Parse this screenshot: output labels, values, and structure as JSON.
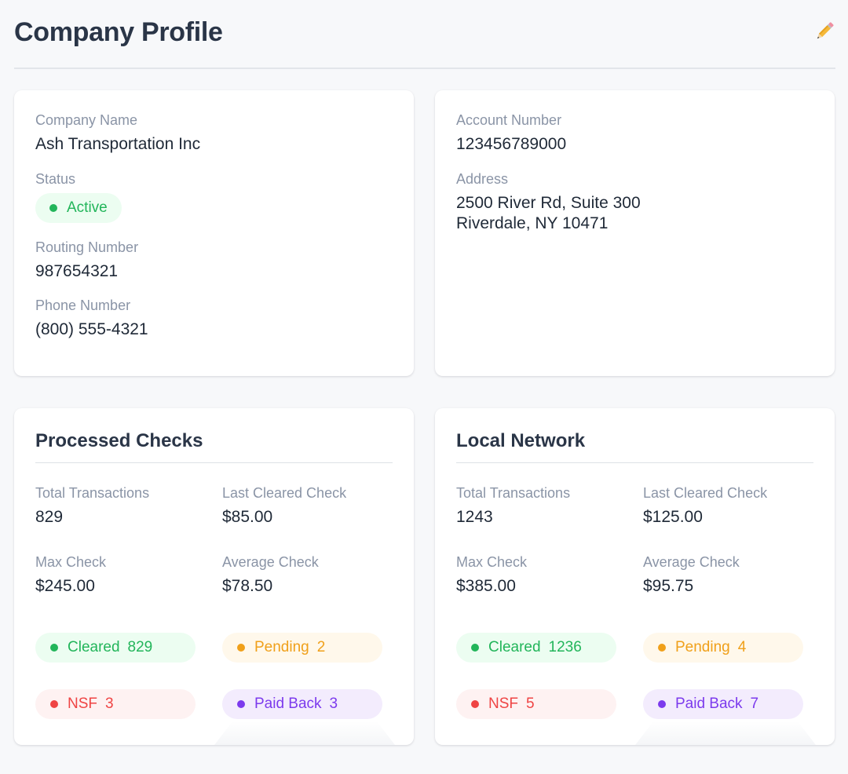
{
  "header": {
    "title": "Company Profile",
    "edit_icon": "pencil-icon"
  },
  "company": {
    "name_label": "Company Name",
    "name": "Ash Transportation Inc",
    "status_label": "Status",
    "status": "Active",
    "routing_label": "Routing Number",
    "routing": "987654321",
    "phone_label": "Phone Number",
    "phone": "(800) 555-4321",
    "account_label": "Account Number",
    "account": "123456789000",
    "address_label": "Address",
    "address_line1": "2500 River Rd, Suite 300",
    "address_line2": "Riverdale, NY 10471"
  },
  "processed": {
    "title": "Processed Checks",
    "total_label": "Total Transactions",
    "total": "829",
    "last_label": "Last Cleared Check",
    "last": "$85.00",
    "max_label": "Max Check",
    "max": "$245.00",
    "avg_label": "Average Check",
    "avg": "$78.50",
    "cleared_label": "Cleared",
    "cleared": "829",
    "pending_label": "Pending",
    "pending": "2",
    "nsf_label": "NSF",
    "nsf": "3",
    "paid_label": "Paid Back",
    "paid": "3"
  },
  "network": {
    "title": "Local Network",
    "total_label": "Total Transactions",
    "total": "1243",
    "last_label": "Last Cleared Check",
    "last": "$125.00",
    "max_label": "Max Check",
    "max": "$385.00",
    "avg_label": "Average Check",
    "avg": "$95.75",
    "cleared_label": "Cleared",
    "cleared": "1236",
    "pending_label": "Pending",
    "pending": "4",
    "nsf_label": "NSF",
    "nsf": "5",
    "paid_label": "Paid Back",
    "paid": "7"
  },
  "colors": {
    "cleared": "#22b55a",
    "pending": "#f0a01a",
    "nsf": "#ef4444",
    "paid_back": "#7c3aed"
  }
}
